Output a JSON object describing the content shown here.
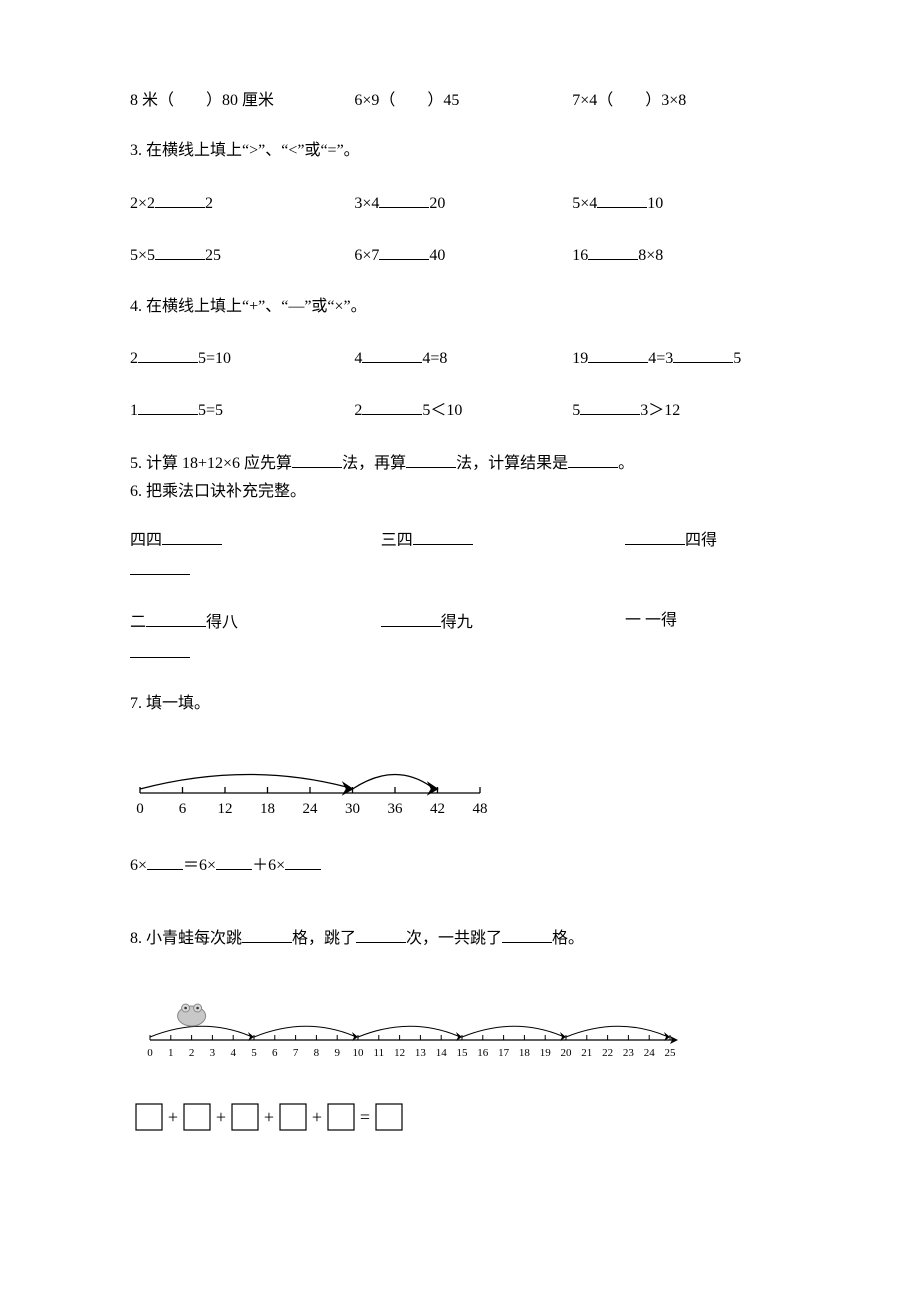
{
  "q2_extra": {
    "a": "8 米（　　）80 厘米",
    "b": "6×9（　　）45",
    "c": "7×4（　　）3×8"
  },
  "q3": {
    "title": "3. 在横线上填上“>”、“<”或“=”。",
    "r1a_l": "2×2",
    "r1a_r": "2",
    "r1b_l": "3×4",
    "r1b_r": "20",
    "r1c_l": "5×4",
    "r1c_r": "10",
    "r2a_l": "5×5",
    "r2a_r": "25",
    "r2b_l": "6×7",
    "r2b_r": "40",
    "r2c_l": "16",
    "r2c_r": "8×8"
  },
  "q4": {
    "title": "4. 在横线上填上“+”、“—”或“×”。",
    "r1a_l": "2",
    "r1a_r": "5=10",
    "r1b_l": "4",
    "r1b_r": "4=8",
    "r1c_l": "19",
    "r1c_m": "4=3",
    "r1c_r": "5",
    "r2a_l": "1",
    "r2a_r": "5=5",
    "r2b_l": "2",
    "r2b_r": "5＜10",
    "r2c_l": "5",
    "r2c_r": "3＞12"
  },
  "q5": {
    "pre": "5. 计算 18+12×6 应先算",
    "mid1": "法，再算",
    "mid2": "法，计算结果是",
    "end": "。"
  },
  "q6": {
    "title": "6. 把乘法口诀补充完整。",
    "r1a": "四四",
    "r1b": "三四",
    "r1c": "四得",
    "r2a_l": "二",
    "r2a_r": "得八",
    "r2b_r": "得九",
    "r2c": "一 一得"
  },
  "q7": {
    "title": "7. 填一填。",
    "numline": {
      "min": 0,
      "max": 48,
      "step": 6,
      "labels": [
        0,
        6,
        12,
        18,
        24,
        30,
        36,
        42,
        48
      ],
      "jumps": [
        [
          0,
          30
        ],
        [
          30,
          42
        ]
      ],
      "axis_color": "#000000",
      "label_fontsize": 15
    },
    "expr_a": "6×",
    "expr_b": "＝6×",
    "expr_c": "＋6×"
  },
  "q8": {
    "title_a": "8. 小青蛙每次跳",
    "title_b": "格，跳了",
    "title_c": "次，一共跳了",
    "title_d": "格。",
    "numline": {
      "min": 0,
      "max": 25,
      "step": 1,
      "jump_span": 5,
      "jump_count": 5,
      "axis_color": "#000000",
      "label_fontsize": 11
    },
    "boxeq": {
      "box_count": 5,
      "op": "+",
      "eq": "=",
      "box_size": 26,
      "stroke": "#000000"
    }
  }
}
